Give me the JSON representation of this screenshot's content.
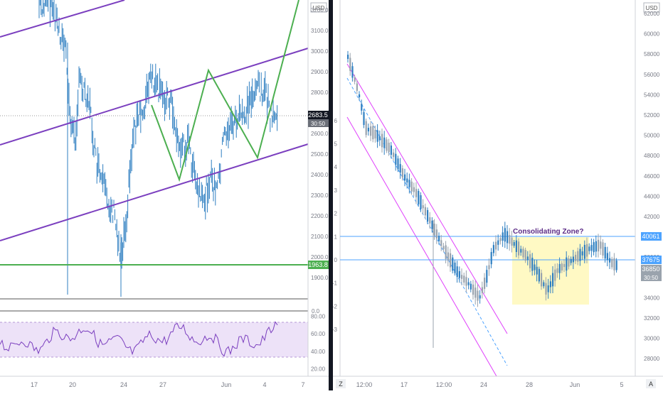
{
  "left": {
    "currency": "USD",
    "price_ticks": [
      "3200.0",
      "3100.0",
      "3000.0",
      "2900.0",
      "2800.0",
      "2700.0",
      "2600.0",
      "2500.0",
      "2400.0",
      "2300.0",
      "2200.0",
      "2100.0",
      "2000.0",
      "1900.0"
    ],
    "current_price": "2683.5",
    "countdown": "30:50",
    "support_label": "1963.8",
    "zero_label": "0.0",
    "rsi_ticks": [
      "80.00",
      "60.00",
      "40.00",
      "20.00"
    ],
    "time_ticks": [
      "17",
      "20",
      "24",
      "27",
      "Jun",
      "4",
      "7"
    ],
    "colors": {
      "price": "#2f7fc1",
      "channel": "#7b3fbf",
      "zigzag": "#4caf50",
      "support": "#4caf50",
      "rsi": "#7b3fbf",
      "rsi_band": "#e6d9f5"
    }
  },
  "right": {
    "currency": "USD",
    "zero_marker": "Z",
    "auto_marker": "A",
    "left_ticks": [
      "6",
      "5",
      "4",
      "3",
      "2",
      "1",
      "0",
      "-1",
      "-2",
      "-3"
    ],
    "price_ticks": [
      "62000",
      "60000",
      "58000",
      "56000",
      "54000",
      "52000",
      "50000",
      "48000",
      "46000",
      "44000",
      "42000",
      "40000",
      "38000",
      "36000",
      "34000",
      "32000",
      "30000",
      "28000"
    ],
    "resistance_label": "40061",
    "level_label": "37675",
    "current_price": "36850",
    "countdown": "30:50",
    "annotation": "Consolidating Zone?",
    "time_ticks": [
      "12:00",
      "17",
      "12:00",
      "24",
      "28",
      "Jun",
      "5"
    ],
    "colors": {
      "up": "#2f7fc1",
      "down": "#9aa3ad",
      "channel": "#e040fb",
      "zone": "#fff9c4",
      "level": "#4da3ff",
      "annotation": "#5b2a86"
    }
  }
}
